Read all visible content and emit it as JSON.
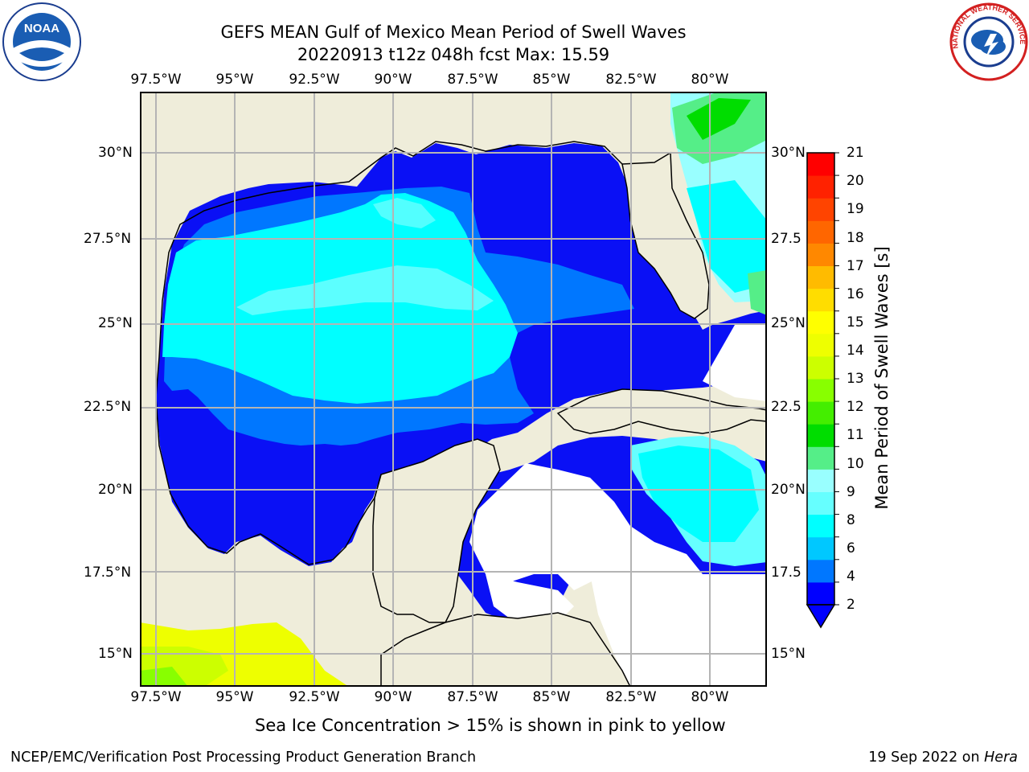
{
  "title": {
    "line1": "GEFS MEAN Gulf of Mexico Mean Period of Swell Waves",
    "line2": "20220913 t12z 048h fcst   Max: 15.59"
  },
  "logos": {
    "noaa_text": "NOAA",
    "nws_text": "NATIONAL WEATHER SERVICE"
  },
  "map": {
    "lon_labels": [
      "97.5°W",
      "95°W",
      "92.5°W",
      "90°W",
      "87.5°W",
      "85°W",
      "82.5°W",
      "80°W"
    ],
    "lat_labels_left": [
      "30°N",
      "27.5°N",
      "25°N",
      "22.5°N",
      "20°N",
      "17.5°N",
      "15°N"
    ],
    "lat_labels_right": [
      "30°N",
      "27.5",
      "25°N",
      "22.5",
      "20°N",
      "17.5",
      "15°N"
    ],
    "land_color": "#efedda",
    "ocean_color": "#ffffff",
    "grid_color": "#b4b4b4"
  },
  "colorbar": {
    "label": "Mean Period of Swell Waves [s]",
    "ticks": [
      "21",
      "20",
      "19",
      "18",
      "17",
      "16",
      "15",
      "14",
      "13",
      "12",
      "11",
      "10",
      "9",
      "8",
      "6",
      "4",
      "2"
    ],
    "colors": [
      "#0000ff",
      "#0077ff",
      "#00c8ff",
      "#00ffff",
      "#66ffff",
      "#99ffff",
      "#55ee88",
      "#00dd00",
      "#44ee00",
      "#88ff00",
      "#ccff00",
      "#eeff00",
      "#ffff00",
      "#ffdd00",
      "#ffbb00",
      "#ff8800",
      "#ff6600",
      "#ff4400",
      "#ff2200",
      "#ff0000"
    ]
  },
  "caption": "Sea Ice Concentration > 15% is shown in pink to yellow",
  "footer": {
    "left": "NCEP/EMC/Verification Post Processing Product Generation Branch",
    "right_date": "19 Sep 2022 on ",
    "right_host": "Hera"
  }
}
